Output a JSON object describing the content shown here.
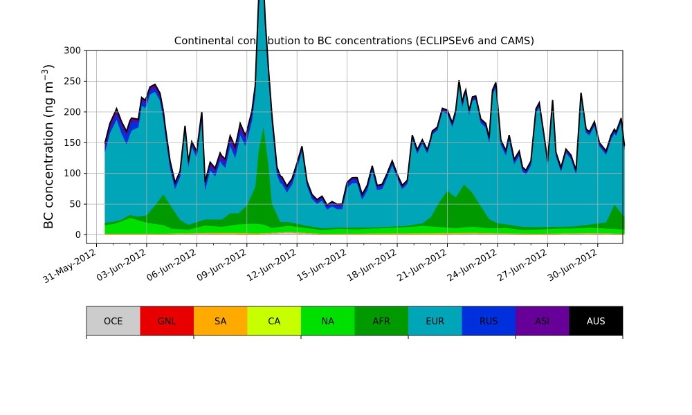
{
  "chart_data": {
    "type": "area",
    "stacked": true,
    "title": "Continental contribution to BC concentrations (ECLIPSEv6 and CAMS)",
    "ylabel": "BC concentration (ng m",
    "ylabel_sup": "−3",
    "ylabel_close": ")",
    "xlabel": "",
    "ylim": [
      -14,
      300
    ],
    "yticks": [
      0,
      50,
      100,
      150,
      200,
      250,
      300
    ],
    "xlim_day": [
      -1.1,
      31
    ],
    "xticks": [
      {
        "day": -0.5,
        "label": "31-May-2012"
      },
      {
        "day": 2.5,
        "label": "03-Jun-2012"
      },
      {
        "day": 5.5,
        "label": "06-Jun-2012"
      },
      {
        "day": 8.5,
        "label": "09-Jun-2012"
      },
      {
        "day": 11.5,
        "label": "12-Jun-2012"
      },
      {
        "day": 14.5,
        "label": "15-Jun-2012"
      },
      {
        "day": 17.5,
        "label": "18-Jun-2012"
      },
      {
        "day": 20.5,
        "label": "21-Jun-2012"
      },
      {
        "day": 23.5,
        "label": "24-Jun-2012"
      },
      {
        "day": 26.5,
        "label": "27-Jun-2012"
      },
      {
        "day": 29.5,
        "label": "30-Jun-2012"
      }
    ],
    "grid": true,
    "series": [
      {
        "name": "OCE",
        "color": "#cccccc",
        "points": [
          [
            0,
            1
          ],
          [
            3,
            1
          ],
          [
            6,
            2
          ],
          [
            9,
            1
          ],
          [
            11,
            4
          ],
          [
            13,
            1
          ],
          [
            16,
            1
          ],
          [
            20,
            1
          ],
          [
            22,
            2
          ],
          [
            26,
            1
          ],
          [
            29,
            2
          ],
          [
            31.1,
            1
          ]
        ]
      },
      {
        "name": "GNL",
        "color": "#e80000",
        "points": [
          [
            0,
            0
          ],
          [
            31.1,
            0
          ]
        ]
      },
      {
        "name": "SA",
        "color": "#ffaa00",
        "points": [
          [
            0,
            1
          ],
          [
            5,
            1
          ],
          [
            8,
            2
          ],
          [
            10,
            1
          ],
          [
            14,
            1
          ],
          [
            20,
            2
          ],
          [
            24,
            1
          ],
          [
            28,
            1
          ],
          [
            31.1,
            1
          ]
        ]
      },
      {
        "name": "CA",
        "color": "#c8ff00",
        "points": [
          [
            0,
            0
          ],
          [
            31.1,
            0
          ]
        ]
      },
      {
        "name": "NA",
        "color": "#00e000",
        "points": [
          [
            0,
            14
          ],
          [
            0.5,
            16
          ],
          [
            1,
            20
          ],
          [
            1.5,
            26
          ],
          [
            2,
            22
          ],
          [
            2.5,
            18
          ],
          [
            3,
            16
          ],
          [
            3.5,
            14
          ],
          [
            4,
            8
          ],
          [
            5,
            6
          ],
          [
            6,
            12
          ],
          [
            7,
            10
          ],
          [
            8,
            14
          ],
          [
            9,
            16
          ],
          [
            9.5,
            14
          ],
          [
            10,
            8
          ],
          [
            11,
            10
          ],
          [
            12,
            8
          ],
          [
            13,
            6
          ],
          [
            14,
            8
          ],
          [
            15,
            7
          ],
          [
            16,
            8
          ],
          [
            17,
            9
          ],
          [
            18,
            10
          ],
          [
            19,
            12
          ],
          [
            20,
            10
          ],
          [
            21,
            8
          ],
          [
            22,
            10
          ],
          [
            23,
            8
          ],
          [
            24,
            9
          ],
          [
            25,
            6
          ],
          [
            26,
            7
          ],
          [
            27,
            8
          ],
          [
            28,
            8
          ],
          [
            29,
            9
          ],
          [
            30,
            8
          ],
          [
            31.1,
            7
          ]
        ]
      },
      {
        "name": "AFR",
        "color": "#009900",
        "points": [
          [
            0,
            4
          ],
          [
            1,
            3
          ],
          [
            2,
            6
          ],
          [
            2.5,
            12
          ],
          [
            3,
            30
          ],
          [
            3.5,
            50
          ],
          [
            4,
            35
          ],
          [
            4.5,
            15
          ],
          [
            5,
            8
          ],
          [
            6,
            10
          ],
          [
            7,
            12
          ],
          [
            7.5,
            20
          ],
          [
            8,
            18
          ],
          [
            8.5,
            30
          ],
          [
            9,
            60
          ],
          [
            9.2,
            120
          ],
          [
            9.5,
            160
          ],
          [
            9.8,
            100
          ],
          [
            10,
            40
          ],
          [
            10.5,
            8
          ],
          [
            11,
            6
          ],
          [
            12,
            4
          ],
          [
            13,
            3
          ],
          [
            14,
            2
          ],
          [
            15,
            3
          ],
          [
            16,
            2
          ],
          [
            17,
            2
          ],
          [
            18,
            2
          ],
          [
            19,
            4
          ],
          [
            19.5,
            15
          ],
          [
            20,
            40
          ],
          [
            20.5,
            60
          ],
          [
            21,
            50
          ],
          [
            21.5,
            70
          ],
          [
            22,
            55
          ],
          [
            22.5,
            35
          ],
          [
            23,
            15
          ],
          [
            23.5,
            8
          ],
          [
            24,
            6
          ],
          [
            25,
            5
          ],
          [
            26,
            4
          ],
          [
            27,
            3
          ],
          [
            28,
            3
          ],
          [
            29,
            5
          ],
          [
            30,
            10
          ],
          [
            30.5,
            40
          ],
          [
            31.1,
            20
          ]
        ]
      },
      {
        "name": "EUR",
        "color": "#00a5b8",
        "points": [
          [
            0,
            115
          ],
          [
            0.3,
            145
          ],
          [
            0.7,
            165
          ],
          [
            1,
            140
          ],
          [
            1.3,
            118
          ],
          [
            1.6,
            138
          ],
          [
            2,
            145
          ],
          [
            2.2,
            180
          ],
          [
            2.4,
            175
          ],
          [
            2.7,
            190
          ],
          [
            3,
            185
          ],
          [
            3.3,
            160
          ],
          [
            3.6,
            105
          ],
          [
            3.9,
            60
          ],
          [
            4.2,
            38
          ],
          [
            4.5,
            70
          ],
          [
            4.8,
            150
          ],
          [
            5,
            95
          ],
          [
            5.2,
            125
          ],
          [
            5.5,
            105
          ],
          [
            5.8,
            165
          ],
          [
            6,
            48
          ],
          [
            6.3,
            80
          ],
          [
            6.6,
            70
          ],
          [
            6.9,
            95
          ],
          [
            7.2,
            80
          ],
          [
            7.5,
            110
          ],
          [
            7.8,
            90
          ],
          [
            8.1,
            125
          ],
          [
            8.4,
            100
          ],
          [
            8.8,
            120
          ],
          [
            9,
            150
          ],
          [
            9.2,
            230
          ],
          [
            9.4,
            255
          ],
          [
            9.6,
            180
          ],
          [
            9.8,
            140
          ],
          [
            10,
            130
          ],
          [
            10.3,
            65
          ],
          [
            10.6,
            62
          ],
          [
            10.9,
            48
          ],
          [
            11.2,
            62
          ],
          [
            11.5,
            90
          ],
          [
            11.8,
            120
          ],
          [
            12.1,
            65
          ],
          [
            12.4,
            45
          ],
          [
            12.7,
            38
          ],
          [
            13,
            45
          ],
          [
            13.3,
            30
          ],
          [
            13.6,
            35
          ],
          [
            13.9,
            30
          ],
          [
            14.2,
            30
          ],
          [
            14.5,
            65
          ],
          [
            14.8,
            72
          ],
          [
            15.1,
            72
          ],
          [
            15.4,
            45
          ],
          [
            15.7,
            60
          ],
          [
            16,
            92
          ],
          [
            16.3,
            60
          ],
          [
            16.6,
            62
          ],
          [
            16.9,
            80
          ],
          [
            17.2,
            100
          ],
          [
            17.5,
            78
          ],
          [
            17.8,
            60
          ],
          [
            18.1,
            68
          ],
          [
            18.4,
            140
          ],
          [
            18.7,
            115
          ],
          [
            19,
            130
          ],
          [
            19.3,
            108
          ],
          [
            19.6,
            130
          ],
          [
            19.9,
            122
          ],
          [
            20.2,
            140
          ],
          [
            20.5,
            125
          ],
          [
            20.8,
            110
          ],
          [
            21,
            135
          ],
          [
            21.2,
            175
          ],
          [
            21.4,
            130
          ],
          [
            21.6,
            150
          ],
          [
            21.8,
            122
          ],
          [
            22,
            150
          ],
          [
            22.2,
            160
          ],
          [
            22.5,
            135
          ],
          [
            22.8,
            140
          ],
          [
            23,
            125
          ],
          [
            23.2,
            205
          ],
          [
            23.4,
            220
          ],
          [
            23.7,
            128
          ],
          [
            24,
            112
          ],
          [
            24.2,
            138
          ],
          [
            24.5,
            100
          ],
          [
            24.8,
            115
          ],
          [
            25,
            90
          ],
          [
            25.2,
            85
          ],
          [
            25.5,
            100
          ],
          [
            25.8,
            185
          ],
          [
            26,
            195
          ],
          [
            26.3,
            140
          ],
          [
            26.5,
            100
          ],
          [
            26.8,
            200
          ],
          [
            27,
            115
          ],
          [
            27.3,
            90
          ],
          [
            27.6,
            120
          ],
          [
            27.9,
            110
          ],
          [
            28.2,
            85
          ],
          [
            28.5,
            210
          ],
          [
            28.8,
            150
          ],
          [
            29,
            145
          ],
          [
            29.3,
            160
          ],
          [
            29.6,
            125
          ],
          [
            30,
            110
          ],
          [
            30.3,
            118
          ],
          [
            30.6,
            115
          ],
          [
            30.9,
            148
          ],
          [
            31.1,
            110
          ]
        ]
      },
      {
        "name": "RUS",
        "color": "#0030dd",
        "points": [
          [
            0,
            5
          ],
          [
            1,
            12
          ],
          [
            1.5,
            16
          ],
          [
            2,
            8
          ],
          [
            3,
            6
          ],
          [
            4,
            6
          ],
          [
            5,
            3
          ],
          [
            6,
            8
          ],
          [
            7,
            6
          ],
          [
            8,
            10
          ],
          [
            9,
            8
          ],
          [
            10,
            8
          ],
          [
            11,
            6
          ],
          [
            12,
            4
          ],
          [
            13,
            4
          ],
          [
            14,
            5
          ],
          [
            15,
            6
          ],
          [
            16,
            5
          ],
          [
            17,
            4
          ],
          [
            18,
            3
          ],
          [
            19,
            3
          ],
          [
            20,
            2
          ],
          [
            21,
            3
          ],
          [
            22,
            3
          ],
          [
            23,
            4
          ],
          [
            24,
            5
          ],
          [
            25,
            4
          ],
          [
            26,
            4
          ],
          [
            27,
            3
          ],
          [
            28,
            3
          ],
          [
            29,
            3
          ],
          [
            30,
            3
          ],
          [
            31.1,
            3
          ]
        ]
      },
      {
        "name": "ASI",
        "color": "#660099",
        "points": [
          [
            0,
            8
          ],
          [
            1,
            6
          ],
          [
            2,
            4
          ],
          [
            3,
            5
          ],
          [
            4,
            4
          ],
          [
            5,
            3
          ],
          [
            6,
            4
          ],
          [
            7,
            6
          ],
          [
            8,
            8
          ],
          [
            9,
            5
          ],
          [
            10,
            4
          ],
          [
            11,
            3
          ],
          [
            12,
            2
          ],
          [
            13,
            2
          ],
          [
            14,
            2
          ],
          [
            15,
            2
          ],
          [
            16,
            2
          ],
          [
            17,
            2
          ],
          [
            18,
            2
          ],
          [
            19,
            2
          ],
          [
            20,
            2
          ],
          [
            21,
            3
          ],
          [
            22,
            2
          ],
          [
            23,
            2
          ],
          [
            24,
            2
          ],
          [
            25,
            2
          ],
          [
            26,
            2
          ],
          [
            27,
            2
          ],
          [
            28,
            2
          ],
          [
            29,
            2
          ],
          [
            30,
            2
          ],
          [
            31.1,
            2
          ]
        ]
      },
      {
        "name": "AUS",
        "color": "#000000",
        "points": [
          [
            0,
            1
          ],
          [
            31.1,
            1
          ]
        ]
      }
    ]
  }
}
